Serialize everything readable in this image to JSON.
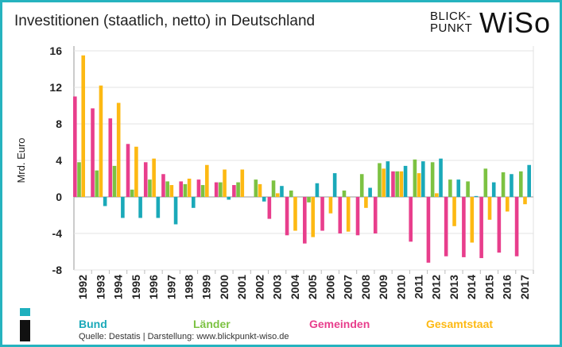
{
  "colors": {
    "Bund": "#1aa9b9",
    "Länder": "#7cc242",
    "Gemeinden": "#e83e8c",
    "Gesamtstaat": "#fdb913"
  },
  "logo": {
    "line1": "BLICK-",
    "line2": "PUNKT",
    "word": "WiSo"
  },
  "source": "Quelle: Destatis  |  Darstellung: www.blickpunkt-wiso.de",
  "chart_data": {
    "type": "bar",
    "title": "Investitionen (staatlich, netto) in Deutschland",
    "ylabel": "Mrd. Euro",
    "ylim": [
      -8,
      16
    ],
    "yticks": [
      -8,
      -4,
      0,
      4,
      8,
      12,
      16
    ],
    "grid": true,
    "legend": "bottom",
    "categories": [
      "1992",
      "1993",
      "1994",
      "1995",
      "1996",
      "1997",
      "1998",
      "1999",
      "2000",
      "2001",
      "2002",
      "2003",
      "2004",
      "2005",
      "2006",
      "2007",
      "2008",
      "2009",
      "2010",
      "2011",
      "2012",
      "2013",
      "2014",
      "2015",
      "2016",
      "2017"
    ],
    "series": [
      {
        "name": "Gemeinden",
        "values": [
          11.0,
          9.7,
          8.6,
          5.8,
          3.8,
          2.5,
          1.7,
          1.9,
          1.6,
          1.3,
          0.0,
          -2.4,
          -4.2,
          -5.1,
          -3.7,
          -4.0,
          -4.2,
          -4.0,
          2.8,
          -4.9,
          -7.2,
          -6.5,
          -6.6,
          -6.7,
          -6.1,
          -6.5
        ]
      },
      {
        "name": "Länder",
        "values": [
          3.8,
          2.9,
          3.4,
          0.8,
          1.9,
          1.7,
          1.4,
          1.3,
          1.6,
          1.6,
          1.9,
          1.8,
          0.7,
          -0.6,
          0.0,
          0.7,
          2.5,
          3.7,
          2.8,
          4.1,
          3.8,
          1.9,
          1.7,
          3.1,
          2.7,
          2.8
        ]
      },
      {
        "name": "Gesamtstaat",
        "values": [
          15.5,
          12.2,
          10.3,
          5.5,
          4.2,
          1.3,
          2.0,
          3.5,
          3.0,
          3.0,
          1.4,
          0.4,
          -3.7,
          -4.4,
          -1.8,
          -3.8,
          -1.2,
          3.1,
          2.8,
          2.6,
          0.4,
          -3.2,
          -5.0,
          -2.5,
          -1.6,
          -0.8
        ]
      },
      {
        "name": "Bund",
        "values": [
          0.0,
          -1.0,
          -2.3,
          -2.3,
          -2.3,
          -3.0,
          -1.2,
          0.0,
          -0.3,
          0.0,
          -0.5,
          1.2,
          0.0,
          1.5,
          2.6,
          0.0,
          1.0,
          3.9,
          3.4,
          3.9,
          4.2,
          1.9,
          0.1,
          1.6,
          2.5,
          3.5
        ]
      }
    ]
  }
}
